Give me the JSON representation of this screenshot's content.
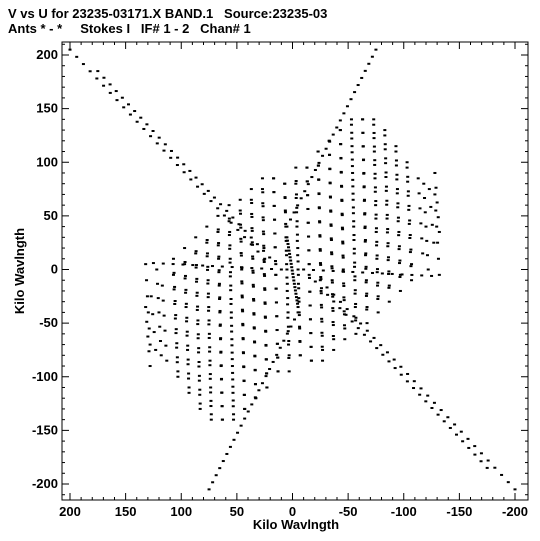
{
  "header": {
    "line1": "V vs U for 23235-03171.X BAND.1   Source:23235-03",
    "line2": "Ants * - *     Stokes I   IF# 1 - 2   Chan# 1"
  },
  "chart_data": {
    "type": "scatter",
    "xlabel": "Kilo Wavlngth",
    "ylabel": "Kilo Wavlngth",
    "xlim": [
      200,
      -200
    ],
    "ylim": [
      -200,
      200
    ],
    "x_ticks": [
      200,
      150,
      100,
      50,
      0,
      -50,
      -100,
      -150,
      -200
    ],
    "y_ticks": [
      200,
      150,
      100,
      50,
      0,
      -50,
      -100,
      -150,
      -200
    ],
    "grid": false,
    "marker_color": "#000000",
    "tracks": [
      {
        "x0": 15,
        "y0": 5,
        "x1": 175,
        "y1": 185,
        "pts": 30
      },
      {
        "x0": -15,
        "y0": -5,
        "x1": -175,
        "y1": -185,
        "pts": 30
      },
      {
        "x0": 25,
        "y0": 10,
        "x1": 200,
        "y1": 205,
        "pts": 30
      },
      {
        "x0": -25,
        "y0": -10,
        "x1": -200,
        "y1": -205,
        "pts": 30
      },
      {
        "x0": 5,
        "y0": 40,
        "x1": -75,
        "y1": 205,
        "pts": 26
      },
      {
        "x0": -5,
        "y0": -40,
        "x1": 75,
        "y1": -205,
        "pts": 26
      },
      {
        "x0": 10,
        "y0": 0,
        "x1": 125,
        "y1": 6,
        "pts": 14
      },
      {
        "x0": -10,
        "y0": 0,
        "x1": -125,
        "y1": -6,
        "pts": 14
      },
      {
        "x0": 5,
        "y0": 30,
        "x1": -5,
        "y1": -35,
        "pts": 22
      }
    ],
    "vertical_tracks": [
      {
        "x": 130,
        "y0": -70,
        "y1": 5
      },
      {
        "x": 120,
        "y0": -80,
        "y1": 0
      },
      {
        "x": 105,
        "y0": -95,
        "y1": 10
      },
      {
        "x": 95,
        "y0": -110,
        "y1": 20
      },
      {
        "x": 85,
        "y0": -125,
        "y1": 30
      },
      {
        "x": 75,
        "y0": -135,
        "y1": 40
      },
      {
        "x": 65,
        "y0": -140,
        "y1": 50
      },
      {
        "x": 55,
        "y0": -140,
        "y1": 60
      },
      {
        "x": 45,
        "y0": -130,
        "y1": 65
      },
      {
        "x": 35,
        "y0": -120,
        "y1": 75
      },
      {
        "x": 25,
        "y0": -110,
        "y1": 85
      },
      {
        "x": 15,
        "y0": -95,
        "y1": 85
      },
      {
        "x": 5,
        "y0": -80,
        "y1": 80
      },
      {
        "x": -5,
        "y0": -80,
        "y1": 95
      },
      {
        "x": -15,
        "y0": -85,
        "y1": 95
      },
      {
        "x": -25,
        "y0": -75,
        "y1": 110
      },
      {
        "x": -35,
        "y0": -65,
        "y1": 120
      },
      {
        "x": -45,
        "y0": -55,
        "y1": 130
      },
      {
        "x": -55,
        "y0": -45,
        "y1": 135
      },
      {
        "x": -65,
        "y0": -35,
        "y1": 140
      },
      {
        "x": -75,
        "y0": -25,
        "y1": 140
      },
      {
        "x": -85,
        "y0": -15,
        "y1": 130
      },
      {
        "x": -95,
        "y0": -5,
        "y1": 115
      },
      {
        "x": -105,
        "y0": 5,
        "y1": 100
      },
      {
        "x": -115,
        "y0": 15,
        "y1": 85
      },
      {
        "x": -125,
        "y0": 25,
        "y1": 75
      },
      {
        "x": -130,
        "y0": 35,
        "y1": 90
      }
    ]
  }
}
